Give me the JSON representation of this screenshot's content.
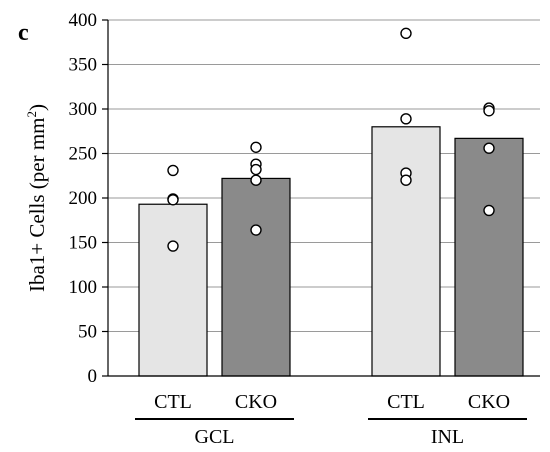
{
  "panel_label": "c",
  "chart_data": {
    "type": "bar",
    "ylabel_main": "Iba1+ Cells (per mm",
    "ylabel_sup": "2",
    "ylabel_close": ")",
    "xlabel": "",
    "ylim": [
      0,
      400
    ],
    "yticks": [
      0,
      50,
      100,
      150,
      200,
      250,
      300,
      350,
      400
    ],
    "grid": true,
    "groups": [
      {
        "name": "GCL",
        "bars": [
          {
            "category": "CTL",
            "value": 193,
            "color": "#e5e5e5",
            "points": [
              231,
              199,
              198,
              146
            ]
          },
          {
            "category": "CKO",
            "value": 222,
            "color": "#8a8a8a",
            "points": [
              257,
              238,
              232,
              220,
              164
            ]
          }
        ]
      },
      {
        "name": "INL",
        "bars": [
          {
            "category": "CTL",
            "value": 280,
            "color": "#e5e5e5",
            "points": [
              385,
              289,
              228,
              220
            ]
          },
          {
            "category": "CKO",
            "value": 267,
            "color": "#8a8a8a",
            "points": [
              301,
              298,
              256,
              186
            ]
          }
        ]
      }
    ]
  }
}
